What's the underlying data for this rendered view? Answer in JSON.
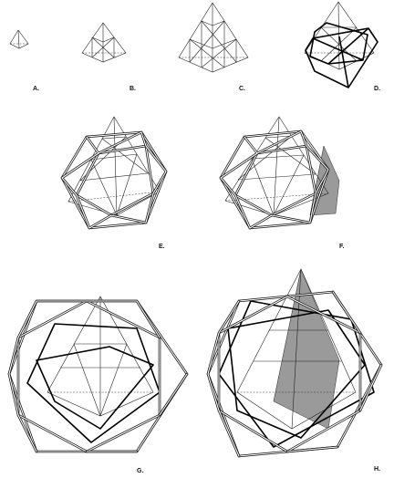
{
  "panels": [
    {
      "id": "A",
      "label": "A."
    },
    {
      "id": "B",
      "label": "B."
    },
    {
      "id": "C",
      "label": "C."
    },
    {
      "id": "D",
      "label": "D."
    },
    {
      "id": "E",
      "label": "E."
    },
    {
      "id": "F",
      "label": "F."
    },
    {
      "id": "G",
      "label": "G."
    },
    {
      "id": "H",
      "label": "H."
    }
  ]
}
